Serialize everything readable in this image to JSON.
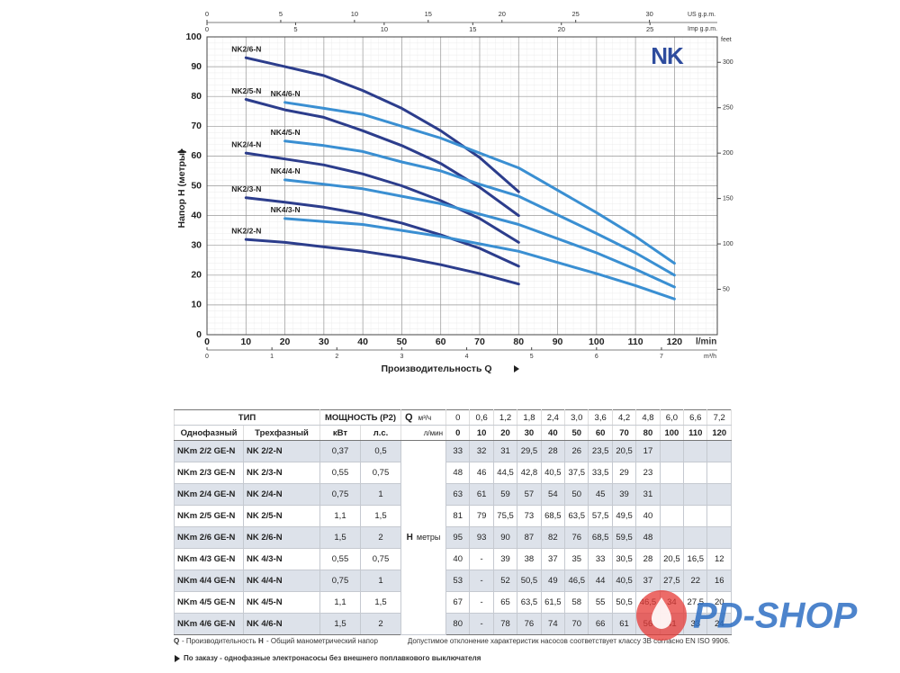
{
  "chart_data": {
    "type": "line",
    "logo": "NK",
    "x_label": "Производительность Q",
    "y_label": "Напор H (метры)",
    "x_unit": "l/min",
    "x": [
      10,
      20,
      30,
      40,
      50,
      60,
      70,
      80,
      100,
      110,
      120
    ],
    "xlim": [
      0,
      131
    ],
    "xticks": [
      0,
      10,
      20,
      30,
      40,
      50,
      60,
      70,
      80,
      90,
      100,
      110,
      120
    ],
    "ylim": [
      0,
      100
    ],
    "yticks": [
      0,
      10,
      20,
      30,
      40,
      50,
      60,
      70,
      80,
      90,
      100
    ],
    "grid": true,
    "y2_unit": "feet",
    "y2lim": [
      0,
      328
    ],
    "y2ticks": [
      50,
      100,
      150,
      200,
      250,
      300
    ],
    "x2_unit": "m³/h",
    "x2lim": [
      0,
      7.86
    ],
    "x2ticks": [
      0,
      1,
      2,
      3,
      4,
      5,
      6,
      7
    ],
    "x3_unit": "US g.p.m.",
    "x3lim": [
      0,
      34.6
    ],
    "x3ticks": [
      0,
      5,
      10,
      15,
      20,
      25,
      30
    ],
    "x4_unit": "Imp g.p.m.",
    "x4lim": [
      0,
      28.8
    ],
    "x4ticks": [
      0,
      5,
      10,
      15,
      20,
      25
    ],
    "series": [
      {
        "name": "NK2/2-N",
        "color": "#2c3d8c",
        "values": [
          32,
          31,
          29.5,
          28,
          26,
          23.5,
          20.5,
          17,
          null,
          null,
          null
        ]
      },
      {
        "name": "NK2/3-N",
        "color": "#2c3d8c",
        "values": [
          46,
          44.5,
          42.8,
          40.5,
          37.5,
          33.5,
          29,
          23,
          null,
          null,
          null
        ]
      },
      {
        "name": "NK2/4-N",
        "color": "#2c3d8c",
        "values": [
          61,
          59,
          57,
          54,
          50,
          45,
          39,
          31,
          null,
          null,
          null
        ]
      },
      {
        "name": "NK2/5-N",
        "color": "#2c3d8c",
        "values": [
          79,
          75.5,
          73,
          68.5,
          63.5,
          57.5,
          49.5,
          40,
          null,
          null,
          null
        ]
      },
      {
        "name": "NK2/6-N",
        "color": "#2c3d8c",
        "values": [
          93,
          90,
          87,
          82,
          76,
          68.5,
          59.5,
          48,
          null,
          null,
          null
        ]
      },
      {
        "name": "NK4/3-N",
        "color": "#3a8fd2",
        "values": [
          null,
          39,
          38,
          37,
          35,
          33,
          30.5,
          28,
          20.5,
          16.5,
          12
        ]
      },
      {
        "name": "NK4/4-N",
        "color": "#3a8fd2",
        "values": [
          null,
          52,
          50.5,
          49,
          46.5,
          44,
          40.5,
          37,
          27.5,
          22,
          16
        ]
      },
      {
        "name": "NK4/5-N",
        "color": "#3a8fd2",
        "values": [
          null,
          65,
          63.5,
          61.5,
          58,
          55,
          50.5,
          46.5,
          34,
          27.5,
          20
        ]
      },
      {
        "name": "NK4/6-N",
        "color": "#3a8fd2",
        "values": [
          null,
          78,
          76,
          74,
          70,
          66,
          61,
          56,
          41,
          33,
          24
        ]
      }
    ]
  },
  "table": {
    "header": {
      "type": "ТИП",
      "power": "МОЩНОСТЬ (P2)",
      "q_symbol": "Q",
      "q_unit_m3h": "м³/ч",
      "q_unit_lmin": "л/мин",
      "single_phase": "Однофазный",
      "three_phase": "Трехфазный",
      "kw": "кВт",
      "hp": "л.с.",
      "q_m3h": [
        "0",
        "0,6",
        "1,2",
        "1,8",
        "2,4",
        "3,0",
        "3,6",
        "4,2",
        "4,8",
        "6,0",
        "6,6",
        "7,2"
      ],
      "q_lmin": [
        "0",
        "10",
        "20",
        "30",
        "40",
        "50",
        "60",
        "70",
        "80",
        "100",
        "110",
        "120"
      ]
    },
    "h_label": "H",
    "h_unit": "метры",
    "rows": [
      [
        "NKm 2/2 GE-N",
        "NK 2/2-N",
        "0,37",
        "0,5",
        "33",
        "32",
        "31",
        "29,5",
        "28",
        "26",
        "23,5",
        "20,5",
        "17"
      ],
      [
        "NKm 2/3 GE-N",
        "NK 2/3-N",
        "0,55",
        "0,75",
        "48",
        "46",
        "44,5",
        "42,8",
        "40,5",
        "37,5",
        "33,5",
        "29",
        "23"
      ],
      [
        "NKm 2/4 GE-N",
        "NK 2/4-N",
        "0,75",
        "1",
        "63",
        "61",
        "59",
        "57",
        "54",
        "50",
        "45",
        "39",
        "31"
      ],
      [
        "NKm 2/5 GE-N",
        "NK 2/5-N",
        "1,1",
        "1,5",
        "81",
        "79",
        "75,5",
        "73",
        "68,5",
        "63,5",
        "57,5",
        "49,5",
        "40"
      ],
      [
        "NKm 2/6 GE-N",
        "NK 2/6-N",
        "1,5",
        "2",
        "95",
        "93",
        "90",
        "87",
        "82",
        "76",
        "68,5",
        "59,5",
        "48"
      ],
      [
        "NKm 4/3 GE-N",
        "NK 4/3-N",
        "0,55",
        "0,75",
        "40",
        "-",
        "39",
        "38",
        "37",
        "35",
        "33",
        "30,5",
        "28",
        "20,5",
        "16,5",
        "12"
      ],
      [
        "NKm 4/4 GE-N",
        "NK 4/4-N",
        "0,75",
        "1",
        "53",
        "-",
        "52",
        "50,5",
        "49",
        "46,5",
        "44",
        "40,5",
        "37",
        "27,5",
        "22",
        "16"
      ],
      [
        "NKm 4/5 GE-N",
        "NK 4/5-N",
        "1,1",
        "1,5",
        "67",
        "-",
        "65",
        "63,5",
        "61,5",
        "58",
        "55",
        "50,5",
        "46,5",
        "34",
        "27,5",
        "20"
      ],
      [
        "NKm 4/6 GE-N",
        "NK 4/6-N",
        "1,5",
        "2",
        "80",
        "-",
        "78",
        "76",
        "74",
        "70",
        "66",
        "61",
        "56",
        "41",
        "33",
        "24"
      ]
    ]
  },
  "footer": {
    "q_symbol": "Q",
    "q_text": "- Производительность",
    "h_symbol": "H",
    "h_text": "- Общий манометрический напор",
    "tolerance": "Допустимое отклонение характеристик насосов соответствует классу 3B согласно EN ISO 9906.",
    "order_note": "По заказу - однофазные электронасосы без внешнего поплавкового выключателя"
  },
  "watermark": "PD-SHOP"
}
